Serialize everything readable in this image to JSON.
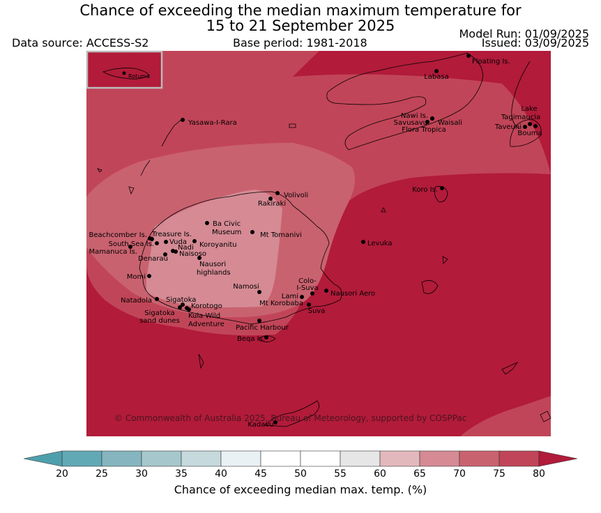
{
  "header": {
    "title_line1": "Chance of exceeding the median maximum temperature for",
    "title_line2": "15 to 21 September 2025",
    "data_source": "Data source: ACCESS-S2",
    "base_period": "Base period: 1981-2018",
    "model_run": "Model Run: 01/09/2025",
    "issued": "Issued: 03/09/2025"
  },
  "map": {
    "copyright": "© Commonwealth of Australia 2025, Bureau of Meteorology, supported by COSPPac",
    "inset_label": "Rotuma",
    "colors": {
      "c80": "#b21b3a",
      "c75": "#c14558",
      "c70": "#c9626f",
      "c65": "#d58a94"
    },
    "places": [
      {
        "name": "Floating Is."
      },
      {
        "name": "Labasa"
      },
      {
        "name": "Yasawa-I-Rara"
      },
      {
        "name": "Nawi Is."
      },
      {
        "name": "Savusavu"
      },
      {
        "name": "Waisali"
      },
      {
        "name": "Flora Tropica"
      },
      {
        "name": "Lake"
      },
      {
        "name": "Tagimaucia"
      },
      {
        "name": "Taveuni"
      },
      {
        "name": "Bouma"
      },
      {
        "name": "Koro Is."
      },
      {
        "name": "Volivoli"
      },
      {
        "name": "Rakiraki"
      },
      {
        "name": "Ba Civic"
      },
      {
        "name": "Museum"
      },
      {
        "name": "Mt Tomanivi"
      },
      {
        "name": "Beachcomber Is."
      },
      {
        "name": "Treasure Is."
      },
      {
        "name": "South Sea Is."
      },
      {
        "name": "Vuda"
      },
      {
        "name": "Koroyanitu"
      },
      {
        "name": "Nadi"
      },
      {
        "name": "Mamanuca Is."
      },
      {
        "name": "Naisoso"
      },
      {
        "name": "Denarau"
      },
      {
        "name": "Nausori"
      },
      {
        "name": "highlands"
      },
      {
        "name": "Levuka"
      },
      {
        "name": "Momi"
      },
      {
        "name": "Namosi"
      },
      {
        "name": "Colo-"
      },
      {
        "name": "I-Suva"
      },
      {
        "name": "Nausori Aero"
      },
      {
        "name": "Natadola"
      },
      {
        "name": "Sigatoka"
      },
      {
        "name": "Lami"
      },
      {
        "name": "Korotogo"
      },
      {
        "name": "Mt Korobaba"
      },
      {
        "name": "Sigatoka"
      },
      {
        "name": "Suva"
      },
      {
        "name": "Kula Wild"
      },
      {
        "name": "sand dunes"
      },
      {
        "name": "Adventure"
      },
      {
        "name": "Pacific Harbour"
      },
      {
        "name": "Beqa Is."
      },
      {
        "name": "Kadavu"
      }
    ]
  },
  "colorbar": {
    "ticks": [
      "20",
      "25",
      "30",
      "35",
      "40",
      "45",
      "50",
      "55",
      "60",
      "65",
      "70",
      "75",
      "80"
    ],
    "colors": [
      "#62a9b6",
      "#86b5bf",
      "#a6c8cc",
      "#c6d9dd",
      "#eaf1f4",
      "#ffffff",
      "#ffffff",
      "#e6e6e6",
      "#e3b8bd",
      "#d58a94",
      "#c9626f",
      "#c14558"
    ],
    "low_extend_color": "#4e9fac",
    "high_extend_color": "#b21b3a",
    "title": "Chance of exceeding median max. temp. (%)"
  }
}
